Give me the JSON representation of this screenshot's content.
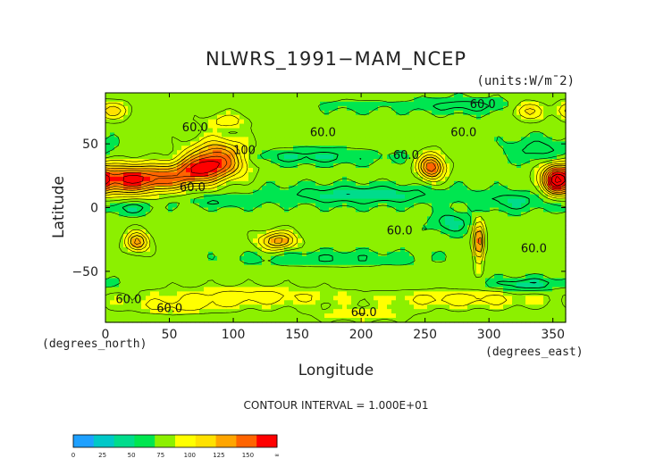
{
  "chart_data": {
    "type": "heatmap",
    "title": "NLWRS_1991−MAM_NCEP",
    "units": "(units:W/m¯2)",
    "xlabel": "Longitude",
    "ylabel": "Latitude",
    "x_unit_label": "(degrees_east)",
    "y_unit_label": "(degrees_north)",
    "xlim": [
      0,
      360
    ],
    "ylim": [
      -90,
      90
    ],
    "x_ticks": [
      0,
      50,
      100,
      150,
      200,
      250,
      300,
      350
    ],
    "y_ticks": [
      -50,
      0,
      50
    ],
    "contour_interval_text": "CONTOUR INTERVAL = 1.000E+01",
    "contour_labels": [
      {
        "lon": 285,
        "lat": 78,
        "text": "60.0"
      },
      {
        "lon": 60,
        "lat": 60,
        "text": "60.0"
      },
      {
        "lon": 160,
        "lat": 56,
        "text": "60.0"
      },
      {
        "lon": 270,
        "lat": 56,
        "text": "60.0"
      },
      {
        "lon": 225,
        "lat": 38,
        "text": "60.0"
      },
      {
        "lon": 58,
        "lat": 13,
        "text": "60.0"
      },
      {
        "lon": 220,
        "lat": -21,
        "text": "60.0"
      },
      {
        "lon": 325,
        "lat": -35,
        "text": "60.0"
      },
      {
        "lon": 8,
        "lat": -75,
        "text": "60.0"
      },
      {
        "lon": 40,
        "lat": -82,
        "text": "60.0"
      },
      {
        "lon": 192,
        "lat": -85,
        "text": "60.0"
      },
      {
        "lon": 100,
        "lat": 42,
        "text": "100"
      }
    ],
    "colorbar": {
      "tick_labels": [
        "0",
        "25",
        "50",
        "75",
        "100",
        "125",
        "150",
        "∞"
      ],
      "colors": [
        "#1ea0ff",
        "#00c8c8",
        "#00dc8c",
        "#00e650",
        "#8cf000",
        "#ffff00",
        "#ffe100",
        "#ffa500",
        "#ff6400",
        "#ff0000"
      ]
    },
    "field": {
      "background_value": 65,
      "features": [
        {
          "lon": 12,
          "lat": 22,
          "dlon": 26,
          "dlat": 12,
          "value": 125
        },
        {
          "lon": 45,
          "lat": 23,
          "dlon": 30,
          "dlat": 10,
          "value": 115
        },
        {
          "lon": 88,
          "lat": 38,
          "dlon": 22,
          "dlat": 14,
          "value": 130
        },
        {
          "lon": 72,
          "lat": 30,
          "dlon": 20,
          "dlat": 10,
          "value": 105
        },
        {
          "lon": 352,
          "lat": 22,
          "dlon": 10,
          "dlat": 12,
          "value": 125
        },
        {
          "lon": 255,
          "lat": 32,
          "dlon": 10,
          "dlat": 10,
          "value": 130
        },
        {
          "lon": 135,
          "lat": -26,
          "dlon": 14,
          "dlat": 7,
          "value": 115
        },
        {
          "lon": 25,
          "lat": -27,
          "dlon": 9,
          "dlat": 8,
          "value": 115
        },
        {
          "lon": 292,
          "lat": -28,
          "dlon": 4,
          "dlat": 16,
          "value": 120
        },
        {
          "lon": 5,
          "lat": 76,
          "dlon": 14,
          "dlat": 7,
          "value": 95
        },
        {
          "lon": 330,
          "lat": 76,
          "dlon": 12,
          "dlat": 7,
          "value": 95
        },
        {
          "lon": 95,
          "lat": 68,
          "dlon": 18,
          "dlat": 6,
          "value": 85
        },
        {
          "lon": 110,
          "lat": -70,
          "dlon": 80,
          "dlat": 8,
          "value": 85
        },
        {
          "lon": 200,
          "lat": -84,
          "dlon": 40,
          "dlat": 5,
          "value": 80
        },
        {
          "lon": 280,
          "lat": -72,
          "dlon": 60,
          "dlat": 7,
          "value": 85
        },
        {
          "lon": 55,
          "lat": -78,
          "dlon": 40,
          "dlat": 5,
          "value": 80
        },
        {
          "lon": 200,
          "lat": 10,
          "dlon": 70,
          "dlat": 8,
          "value": 40
        },
        {
          "lon": 160,
          "lat": 40,
          "dlon": 60,
          "dlat": 6,
          "value": 45
        },
        {
          "lon": 20,
          "lat": 0,
          "dlon": 20,
          "dlat": 6,
          "value": 45
        },
        {
          "lon": 90,
          "lat": 5,
          "dlon": 30,
          "dlat": 5,
          "value": 50
        },
        {
          "lon": 320,
          "lat": 5,
          "dlon": 30,
          "dlat": 8,
          "value": 45
        },
        {
          "lon": 270,
          "lat": -12,
          "dlon": 14,
          "dlat": 8,
          "value": 40
        },
        {
          "lon": 340,
          "lat": 45,
          "dlon": 25,
          "dlat": 10,
          "value": 45
        },
        {
          "lon": 280,
          "lat": 80,
          "dlon": 40,
          "dlat": 6,
          "value": 45
        },
        {
          "lon": 180,
          "lat": -40,
          "dlon": 70,
          "dlat": 6,
          "value": 50
        },
        {
          "lon": 330,
          "lat": -60,
          "dlon": 30,
          "dlat": 5,
          "value": 40
        },
        {
          "lon": 195,
          "lat": 80,
          "dlon": 30,
          "dlat": 5,
          "value": 55
        }
      ]
    }
  }
}
